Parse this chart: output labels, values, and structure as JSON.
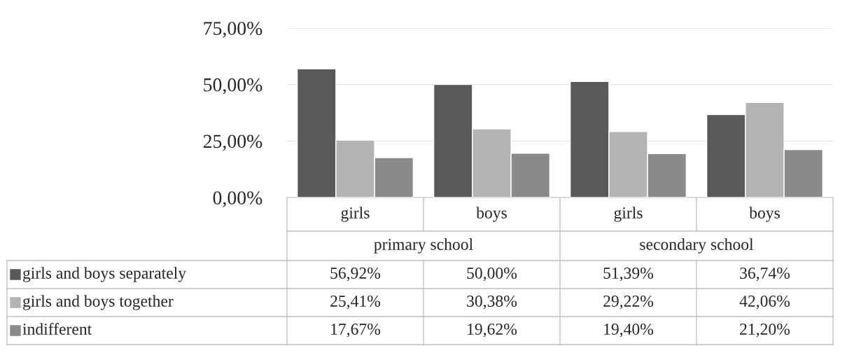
{
  "chart_data": {
    "type": "bar",
    "categories": [
      "girls",
      "boys",
      "girls",
      "boys"
    ],
    "annotations": [
      "primary school",
      "secondary school"
    ],
    "series": [
      {
        "name": "girls and boys separately",
        "color": "#595959",
        "values": [
          56.92,
          50.0,
          51.39,
          36.74
        ],
        "value_labels": [
          "56,92%",
          "50,00%",
          "51,39%",
          "36,74%"
        ]
      },
      {
        "name": "girls and boys together",
        "color": "#b3b3b3",
        "values": [
          25.41,
          30.38,
          29.22,
          42.06
        ],
        "value_labels": [
          "25,41%",
          "30,38%",
          "29,22%",
          "42,06%"
        ]
      },
      {
        "name": "indifferent",
        "color": "#8a8a8a",
        "values": [
          17.67,
          19.62,
          19.4,
          21.2
        ],
        "value_labels": [
          "17,67%",
          "19,62%",
          "19,40%",
          "21,20%"
        ]
      }
    ],
    "ylim": [
      0,
      75
    ],
    "yticks": [
      {
        "value": 0,
        "label": "0,00%"
      },
      {
        "value": 25,
        "label": "25,00%"
      },
      {
        "value": 50,
        "label": "50,00%"
      },
      {
        "value": 75,
        "label": "75,00%"
      }
    ],
    "grid": "y",
    "legend": "bottom"
  }
}
